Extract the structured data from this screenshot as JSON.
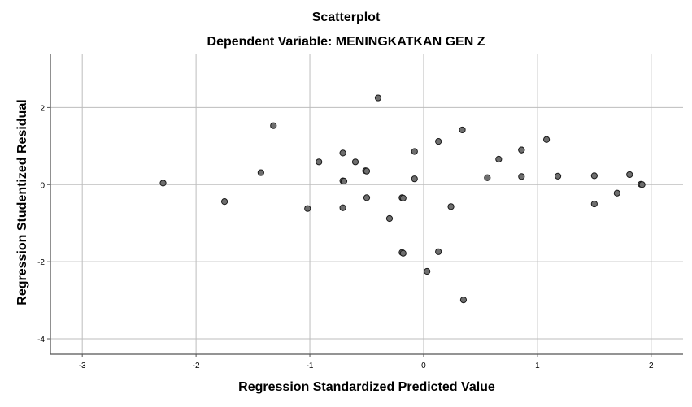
{
  "chart_data": {
    "type": "scatter",
    "title": "Scatterplot",
    "subtitle": "Dependent Variable: MENINGKATKAN GEN Z",
    "xlabel": "Regression Standardized Predicted Value",
    "ylabel": "Regression Studentized Residual",
    "xlim": [
      -3.28,
      2.28
    ],
    "ylim": [
      -4.4,
      3.4
    ],
    "xticks": [
      -3,
      -2,
      -1,
      0,
      1,
      2
    ],
    "yticks": [
      2,
      0,
      -2,
      -4
    ],
    "grid": true,
    "colors": {
      "point_fill": "#6e6e6e",
      "point_stroke": "#1a1a1a",
      "grid": "#bdbdbd",
      "axis": "#555555"
    },
    "points": [
      [
        -2.29,
        0.04
      ],
      [
        -1.75,
        -0.44
      ],
      [
        -1.43,
        0.31
      ],
      [
        -1.32,
        1.53
      ],
      [
        -1.02,
        -0.62
      ],
      [
        -0.92,
        0.59
      ],
      [
        -0.71,
        0.82
      ],
      [
        -0.71,
        0.1
      ],
      [
        -0.7,
        0.09
      ],
      [
        -0.71,
        -0.6
      ],
      [
        -0.6,
        0.59
      ],
      [
        -0.51,
        0.36
      ],
      [
        -0.5,
        0.35
      ],
      [
        -0.5,
        -0.34
      ],
      [
        -0.4,
        2.25
      ],
      [
        -0.3,
        -0.88
      ],
      [
        -0.19,
        -0.34
      ],
      [
        -0.18,
        -0.35
      ],
      [
        -0.19,
        -1.76
      ],
      [
        -0.18,
        -1.78
      ],
      [
        -0.08,
        0.86
      ],
      [
        -0.08,
        0.15
      ],
      [
        0.03,
        -2.25
      ],
      [
        0.13,
        1.12
      ],
      [
        0.13,
        -1.74
      ],
      [
        0.24,
        -0.57
      ],
      [
        0.34,
        1.42
      ],
      [
        0.35,
        -2.99
      ],
      [
        0.56,
        0.18
      ],
      [
        0.66,
        0.66
      ],
      [
        0.86,
        0.9
      ],
      [
        0.86,
        0.9
      ],
      [
        0.86,
        0.21
      ],
      [
        1.08,
        1.17
      ],
      [
        1.18,
        0.22
      ],
      [
        1.5,
        0.23
      ],
      [
        1.5,
        -0.5
      ],
      [
        1.7,
        -0.22
      ],
      [
        1.81,
        0.26
      ],
      [
        1.91,
        0.01
      ],
      [
        1.92,
        0.0
      ]
    ]
  }
}
